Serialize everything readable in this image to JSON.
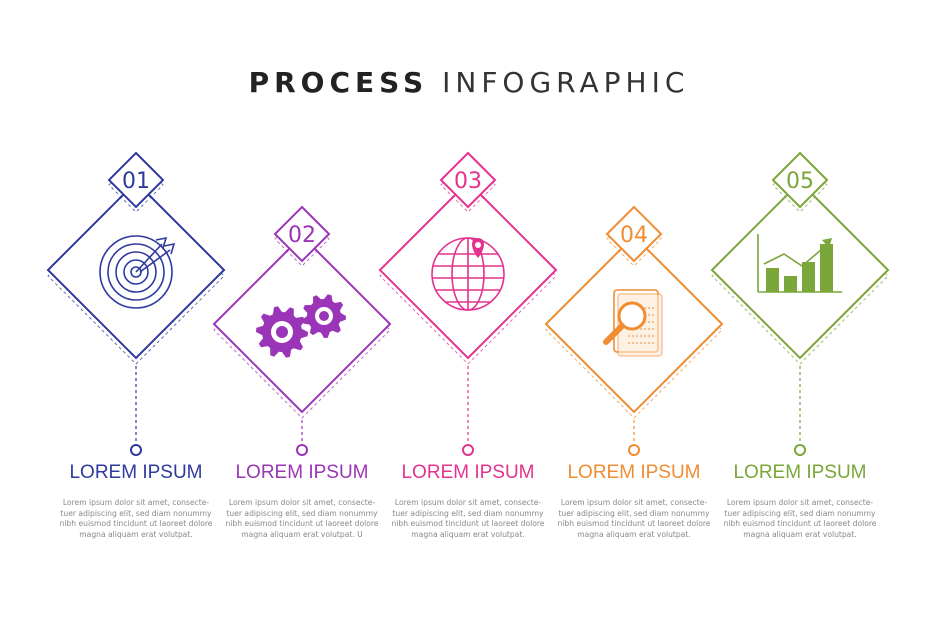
{
  "title": {
    "bold": "PROCESS",
    "light": "INFOGRAPHIC"
  },
  "steps": [
    {
      "number": "01",
      "heading": "LOREM IPSUM",
      "color": "#2e3a9e",
      "icon": "target-icon",
      "text": "Lorem ipsum dolor sit amet, consecte- tuer adipiscing elit, sed diam nonummy nibh euismod tincidunt ut laoreet dolore magna aliquam erat volutpat."
    },
    {
      "number": "02",
      "heading": "LOREM IPSUM",
      "color": "#9b35b8",
      "icon": "gears-icon",
      "text": "Lorem ipsum dolor sit amet, consecte- tuer adipiscing elit, sed diam nonummy nibh euismod tincidunt ut laoreet dolore magna aliquam erat volutpat. U"
    },
    {
      "number": "03",
      "heading": "LOREM IPSUM",
      "color": "#e3338f",
      "icon": "globe-pin-icon",
      "text": "Lorem ipsum dolor sit amet, consecte- tuer adipiscing elit, sed diam nonummy nibh euismod tincidunt ut laoreet dolore magna aliquam erat volutpat."
    },
    {
      "number": "04",
      "heading": "LOREM IPSUM",
      "color": "#f08c32",
      "icon": "document-search-icon",
      "text": "Lorem ipsum dolor sit amet, consecte- tuer adipiscing elit, sed diam nonummy nibh euismod tincidunt ut laoreet dolore magna aliquam erat volutpat."
    },
    {
      "number": "05",
      "heading": "LOREM IPSUM",
      "color": "#7aa63a",
      "icon": "growth-chart-icon",
      "text": "Lorem ipsum dolor sit amet, consecte- tuer adipiscing elit, sed diam nonummy nibh euismod tincidunt ut laoreet dolore magna aliquam erat volutpat."
    }
  ]
}
